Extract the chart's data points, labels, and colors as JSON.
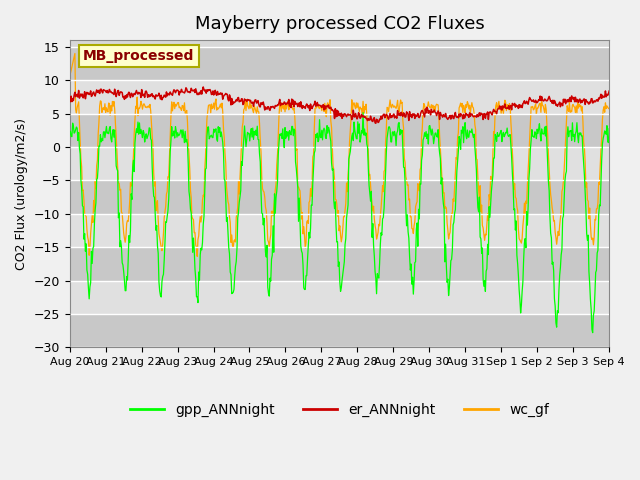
{
  "title": "Mayberry processed CO2 Fluxes",
  "ylabel": "CO2 Flux (urology/m2/s)",
  "ylim": [
    -30,
    16
  ],
  "yticks": [
    -30,
    -25,
    -20,
    -15,
    -10,
    -5,
    0,
    5,
    10,
    15
  ],
  "background_color": "#f0f0f0",
  "plot_bg_color": "#d8d8d8",
  "legend_labels": [
    "gpp_ANNnight",
    "er_ANNnight",
    "wc_gf"
  ],
  "legend_colors": [
    "#00ff00",
    "#cc0000",
    "#ffa500"
  ],
  "annotation_text": "MB_processed",
  "annotation_color": "#8b0000",
  "annotation_bg": "#ffffcc",
  "n_days": 15,
  "dt_hours": 0.5
}
